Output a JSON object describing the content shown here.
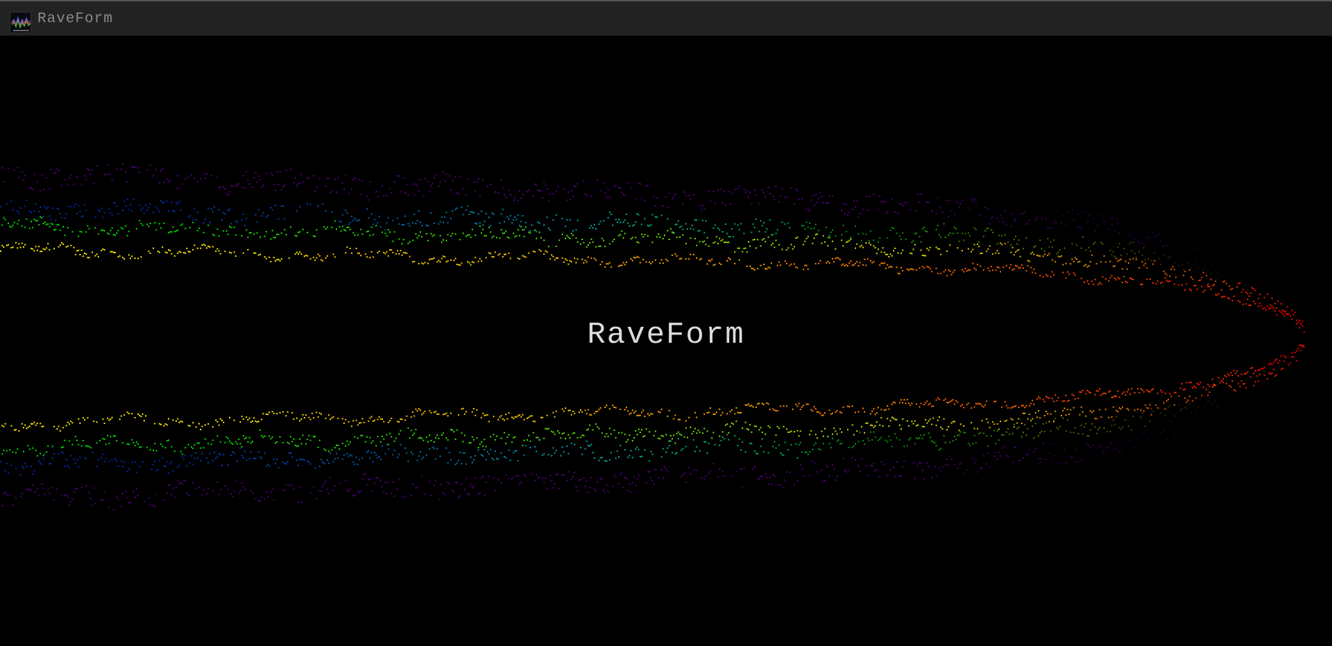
{
  "header": {
    "title": "RaveForm"
  },
  "visualizer": {
    "title": "RaveForm"
  }
}
